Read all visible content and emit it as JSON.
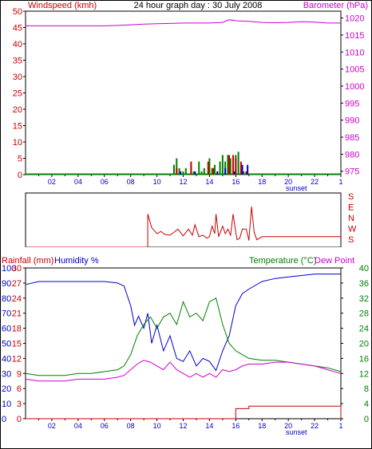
{
  "colors": {
    "red": "#cc0000",
    "magenta": "#cc00cc",
    "blue": "#0000cc",
    "green": "#008000",
    "black": "#000000"
  },
  "chart_data": [
    {
      "type": "line",
      "title": "24 hour graph day : 30 July 2008",
      "ylabel_left": "Windspeed (kmh)",
      "ylabel_right": "Barometer (hPa)",
      "x_ticks": [
        "02",
        "04",
        "06",
        "08",
        "10",
        "12",
        "14",
        "16",
        "18",
        "20",
        "22",
        "1"
      ],
      "x_note": "sunset",
      "y_left": {
        "ticks": [
          "0",
          "5",
          "10",
          "15",
          "20",
          "25",
          "30",
          "35",
          "40",
          "45",
          "50"
        ],
        "lim": [
          0,
          50
        ]
      },
      "y_right": {
        "ticks": [
          "975",
          "980",
          "985",
          "990",
          "995",
          "1000",
          "1005",
          "1010",
          "1015",
          "1020"
        ],
        "lim": [
          974,
          1022
        ]
      },
      "series": [
        {
          "name": "Barometer",
          "axis": "right",
          "color": "#cc00cc",
          "x": [
            0,
            2,
            4,
            6,
            7,
            8,
            9,
            10,
            11,
            12,
            13,
            14,
            14.5,
            15,
            15.5,
            16,
            17,
            18,
            19,
            20,
            21,
            22,
            23,
            24
          ],
          "y": [
            1017.7,
            1017.7,
            1017.7,
            1017.7,
            1017.8,
            1018.0,
            1018.2,
            1018.3,
            1018.4,
            1018.5,
            1018.5,
            1018.5,
            1018.6,
            1018.7,
            1019.5,
            1019.2,
            1019.0,
            1018.7,
            1018.6,
            1018.7,
            1018.9,
            1018.8,
            1018.5,
            1018.5
          ]
        },
        {
          "name": "Wind average",
          "axis": "left",
          "color": "#008000",
          "x": [
            11.1,
            11.3,
            11.5,
            11.7,
            12.0,
            12.2,
            12.4,
            12.6,
            12.8,
            13.0,
            13.2,
            13.4,
            13.6,
            13.8,
            14.0,
            14.2,
            14.4,
            14.6,
            14.8,
            15.0,
            15.2,
            15.4,
            15.6,
            15.8,
            16.0,
            16.2,
            16.4,
            16.6
          ],
          "y": [
            0,
            3,
            5,
            2,
            1,
            2,
            0,
            3,
            1,
            0,
            4,
            1,
            2,
            0,
            5,
            2,
            3,
            1,
            4,
            6,
            4,
            6,
            5,
            3,
            6,
            7,
            2,
            1
          ]
        },
        {
          "name": "Wind gust",
          "axis": "left",
          "color": "#cc0000",
          "x": [
            11.5,
            12.6,
            13.9,
            14.3,
            15.5,
            15.8,
            16.0,
            16.4,
            16.8
          ],
          "y": [
            2,
            4,
            4,
            2,
            6,
            6,
            5,
            4,
            1
          ]
        },
        {
          "name": "Wind lull",
          "axis": "left",
          "color": "#0000cc",
          "x": [
            11.8,
            12.9,
            14.6,
            15.2,
            15.9,
            16.5,
            16.9
          ],
          "y": [
            1,
            1,
            1,
            2,
            1,
            3,
            3
          ]
        }
      ]
    },
    {
      "type": "line",
      "ylabel_right": "S E N W S",
      "direction_labels": [
        "S",
        "E",
        "N",
        "W",
        "S"
      ],
      "series": [
        {
          "name": "Wind direction",
          "color": "#cc0000",
          "x": [
            0,
            9.3,
            9.3,
            9.6,
            9.8,
            10,
            10.3,
            10.6,
            11,
            11.3,
            11.6,
            12,
            12.4,
            12.7,
            12.9,
            13.2,
            13.5,
            13.8,
            14.0,
            14.2,
            14.4,
            14.5,
            14.7,
            15.0,
            15.2,
            15.4,
            15.6,
            15.8,
            16.0,
            16.1,
            16.3,
            16.5,
            16.8,
            17.0,
            17.2,
            17.4,
            17.6,
            18,
            24
          ],
          "y": [
            180,
            180,
            40,
            310,
            290,
            270,
            285,
            265,
            260,
            280,
            300,
            255,
            300,
            260,
            330,
            250,
            260,
            240,
            250,
            320,
            270,
            40,
            250,
            320,
            270,
            300,
            260,
            40,
            280,
            230,
            240,
            300,
            300,
            225,
            90,
            280,
            230,
            250,
            250
          ]
        }
      ]
    },
    {
      "type": "line",
      "ylabel_left_1": "Rainfall (mm)",
      "ylabel_left_2": "Humidity %",
      "ylabel_right_1": "Temperature (°C)",
      "ylabel_right_2": "Dew Point",
      "x_ticks": [
        "02",
        "04",
        "06",
        "08",
        "10",
        "12",
        "14",
        "16",
        "18",
        "20",
        "22",
        "1"
      ],
      "x_note": "sunset",
      "y_humidity": {
        "ticks": [
          "0",
          "10",
          "20",
          "30",
          "40",
          "50",
          "60",
          "70",
          "80",
          "90",
          "100"
        ],
        "lim": [
          0,
          100
        ]
      },
      "y_rain": {
        "ticks": [
          "0",
          "3",
          "6",
          "9",
          "12",
          "15",
          "18",
          "21",
          "24",
          "27",
          "30"
        ],
        "lim": [
          0,
          30
        ]
      },
      "y_temp": {
        "ticks": [
          "0",
          "4",
          "8",
          "12",
          "16",
          "20",
          "24",
          "28",
          "32",
          "36",
          "40"
        ],
        "lim": [
          0,
          40
        ]
      },
      "series": [
        {
          "name": "Humidity",
          "axis": "humidity",
          "color": "#0000cc",
          "x": [
            0,
            1,
            2,
            3,
            4,
            5,
            6,
            7,
            7.5,
            8,
            8.3,
            8.6,
            9,
            9.3,
            9.6,
            10,
            10.5,
            11,
            11.5,
            12,
            12.5,
            13,
            13.5,
            14,
            14.5,
            15,
            15.5,
            16,
            16.5,
            17,
            18,
            19,
            20,
            21,
            22,
            23,
            24
          ],
          "y": [
            89,
            91,
            91,
            91,
            91,
            91,
            91,
            90,
            88,
            75,
            62,
            68,
            60,
            70,
            50,
            62,
            45,
            55,
            40,
            38,
            45,
            35,
            40,
            38,
            32,
            45,
            55,
            75,
            83,
            86,
            91,
            93,
            94,
            95,
            96,
            96,
            96
          ]
        },
        {
          "name": "Temperature",
          "axis": "temp",
          "color": "#008000",
          "x": [
            0,
            1,
            2,
            3,
            4,
            5,
            6,
            7,
            7.5,
            8,
            8.5,
            9,
            9.5,
            10,
            10.5,
            11,
            11.5,
            12,
            12.5,
            13,
            13.5,
            14,
            14.5,
            15,
            15.5,
            16,
            16.5,
            17,
            18,
            19,
            20,
            21,
            22,
            23,
            24
          ],
          "y": [
            12,
            11.5,
            11.5,
            11.5,
            12,
            12,
            12.5,
            13,
            14,
            17,
            22,
            25,
            27,
            24,
            27,
            28,
            25,
            31,
            27,
            28,
            26,
            31,
            32,
            25,
            20,
            18,
            17,
            16,
            15.5,
            15.5,
            15,
            14.5,
            14,
            13.5,
            12.5
          ]
        },
        {
          "name": "Dew Point",
          "axis": "temp",
          "color": "#cc00cc",
          "x": [
            0,
            1,
            2,
            3,
            4,
            5,
            6,
            7,
            7.5,
            8,
            8.5,
            9,
            9.5,
            10,
            10.5,
            11,
            11.5,
            12,
            12.5,
            13,
            13.5,
            14,
            14.5,
            15,
            15.5,
            16,
            16.5,
            17,
            18,
            19,
            20,
            21,
            22,
            23,
            24
          ],
          "y": [
            10.5,
            10,
            10,
            10,
            10.5,
            10.5,
            10.5,
            11,
            11.5,
            13,
            14.5,
            15.5,
            15,
            14,
            13,
            15,
            13,
            12,
            11,
            12,
            11,
            12,
            11,
            13,
            12.5,
            13,
            14,
            14.5,
            14.5,
            15,
            15,
            14.5,
            14,
            13,
            12
          ]
        },
        {
          "name": "Rainfall",
          "axis": "rain",
          "color": "#cc0000",
          "x": [
            0,
            16,
            16,
            17,
            17,
            24,
            24
          ],
          "y": [
            0,
            0,
            2,
            2,
            2.5,
            2.5,
            0
          ]
        }
      ]
    }
  ]
}
